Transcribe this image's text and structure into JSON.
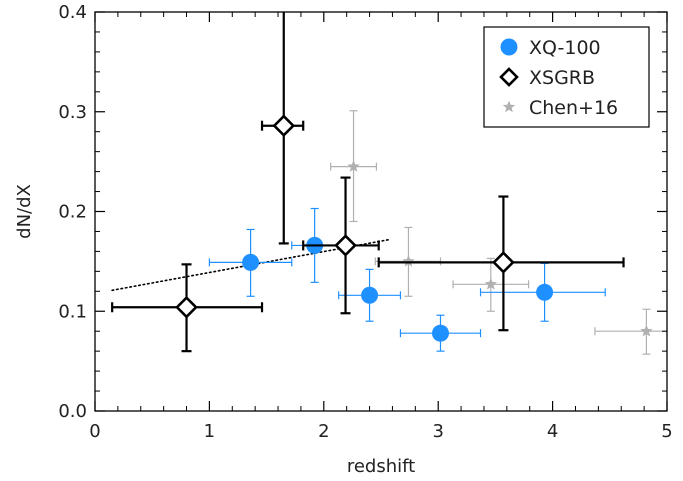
{
  "chart_data": {
    "type": "scatter",
    "xlabel": "redshift",
    "ylabel": "dN/dX",
    "xlim": [
      0,
      5
    ],
    "ylim": [
      0,
      0.4
    ],
    "x_ticks": [
      0,
      1,
      2,
      3,
      4,
      5
    ],
    "x_tick_labels": [
      "0",
      "1",
      "2",
      "3",
      "4",
      "5"
    ],
    "y_ticks": [
      0.0,
      0.1,
      0.2,
      0.3,
      0.4
    ],
    "y_tick_labels": [
      "0.0",
      "0.1",
      "0.2",
      "0.3",
      "0.4"
    ],
    "legend_position": "top-right",
    "series": [
      {
        "name": "XQ-100",
        "marker": "circle",
        "color": "#1E90FF",
        "points": [
          {
            "x": 1.36,
            "y": 0.149,
            "xlo": 1.0,
            "xhi": 1.72,
            "ylo": 0.115,
            "yhi": 0.182
          },
          {
            "x": 1.92,
            "y": 0.166,
            "xlo": 1.72,
            "xhi": 2.13,
            "ylo": 0.129,
            "yhi": 0.203
          },
          {
            "x": 2.4,
            "y": 0.116,
            "xlo": 2.13,
            "xhi": 2.67,
            "ylo": 0.09,
            "yhi": 0.142
          },
          {
            "x": 3.02,
            "y": 0.078,
            "xlo": 2.67,
            "xhi": 3.37,
            "ylo": 0.06,
            "yhi": 0.096
          },
          {
            "x": 3.93,
            "y": 0.119,
            "xlo": 3.37,
            "xhi": 4.46,
            "ylo": 0.09,
            "yhi": 0.148
          }
        ]
      },
      {
        "name": "XSGRB",
        "marker": "diamond",
        "color": "#000000",
        "points": [
          {
            "x": 0.8,
            "y": 0.104,
            "xlo": 0.15,
            "xhi": 1.46,
            "ylo": 0.06,
            "yhi": 0.147
          },
          {
            "x": 1.65,
            "y": 0.286,
            "xlo": 1.46,
            "xhi": 1.82,
            "ylo": 0.168,
            "yhi": 0.4
          },
          {
            "x": 2.19,
            "y": 0.166,
            "xlo": 1.82,
            "xhi": 2.48,
            "ylo": 0.098,
            "yhi": 0.234
          },
          {
            "x": 3.57,
            "y": 0.149,
            "xlo": 2.48,
            "xhi": 4.62,
            "ylo": 0.081,
            "yhi": 0.215
          }
        ]
      },
      {
        "name": "Chen+16",
        "marker": "star",
        "color": "#B0B0B0",
        "points": [
          {
            "x": 2.26,
            "y": 0.245,
            "xlo": 2.06,
            "xhi": 2.46,
            "ylo": 0.19,
            "yhi": 0.301
          },
          {
            "x": 2.74,
            "y": 0.15,
            "xlo": 2.45,
            "xhi": 3.02,
            "ylo": 0.115,
            "yhi": 0.184
          },
          {
            "x": 3.46,
            "y": 0.127,
            "xlo": 3.13,
            "xhi": 3.79,
            "ylo": 0.1,
            "yhi": 0.153
          },
          {
            "x": 4.82,
            "y": 0.08,
            "xlo": 4.37,
            "xhi": 5.0,
            "ylo": 0.057,
            "yhi": 0.102
          }
        ]
      }
    ],
    "fit_line": {
      "style": "dotted",
      "color": "#000000",
      "x": [
        0.15,
        2.58
      ],
      "y": [
        0.121,
        0.172
      ]
    }
  }
}
